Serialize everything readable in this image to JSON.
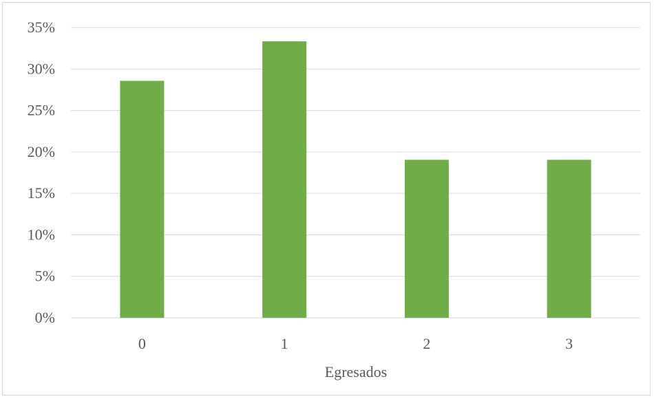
{
  "chart_data": {
    "type": "bar",
    "categories": [
      "0",
      "1",
      "2",
      "3"
    ],
    "values": [
      0.2857,
      0.3333,
      0.1905,
      0.1905
    ],
    "title": "",
    "xlabel": "Egresados",
    "ylabel": "",
    "ylim": [
      0,
      0.35
    ],
    "yticks": [
      0,
      0.05,
      0.1,
      0.15,
      0.2,
      0.25,
      0.3,
      0.35
    ],
    "ytick_labels": [
      "0%",
      "5%",
      "10%",
      "15%",
      "20%",
      "25%",
      "30%",
      "35%"
    ],
    "grid": true,
    "legend": "none",
    "bar_color": "#70ad47",
    "grid_color": "#d9d9d9"
  }
}
